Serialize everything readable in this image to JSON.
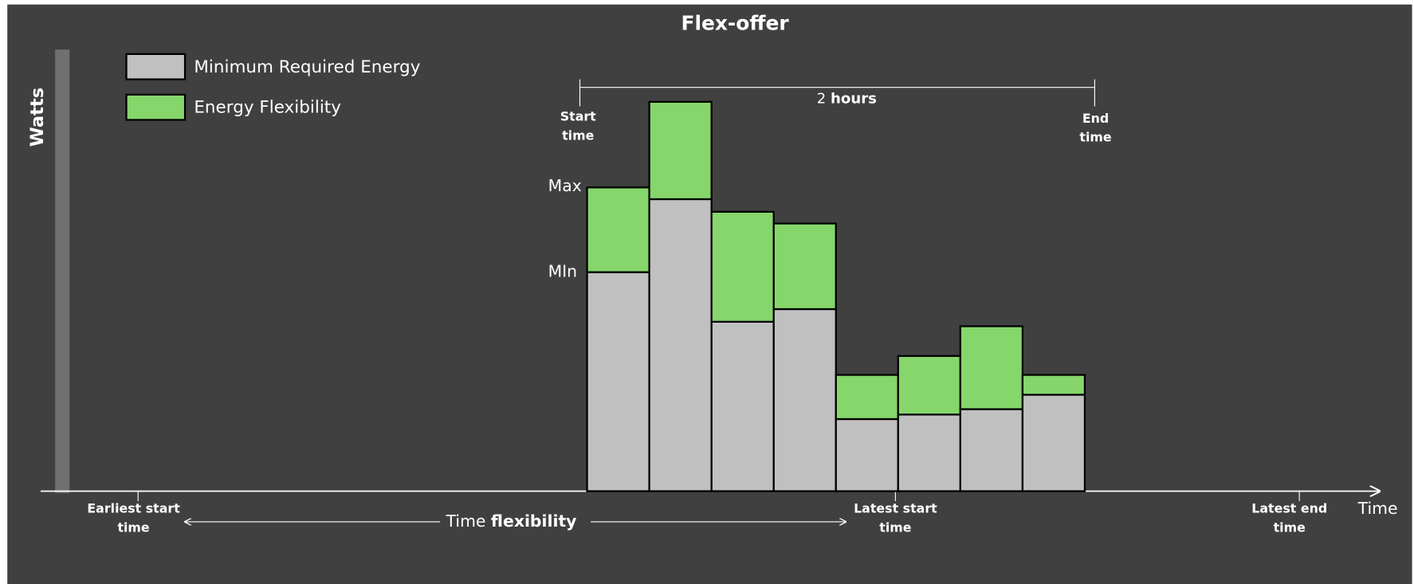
{
  "chart_data": {
    "type": "bar",
    "stacked": true,
    "title": "Flex-offer",
    "y_label": "Watts",
    "x_label": "Time",
    "ylim": [
      0,
      490
    ],
    "series": [
      {
        "name": "Minimum Required Energy",
        "color": "#c0c0c0",
        "values": [
          243,
          324,
          188,
          202,
          80,
          85,
          91,
          107
        ]
      },
      {
        "name": "Energy Flexibility",
        "color": "#86d66b",
        "values": [
          94,
          108,
          122,
          95,
          49,
          65,
          92,
          22
        ]
      }
    ],
    "annotations": {
      "max": "Max",
      "min": "MIn",
      "start_time": [
        "Start",
        "time"
      ],
      "end_time": [
        "End",
        "time"
      ],
      "duration": [
        "2",
        "hours"
      ],
      "earliest_start": [
        "Earliest start",
        "time"
      ],
      "time_flexibility": [
        "Time",
        "flexibility"
      ],
      "latest_start": [
        "Latest start",
        "time"
      ],
      "latest_end": [
        "Latest end",
        "time"
      ]
    }
  }
}
